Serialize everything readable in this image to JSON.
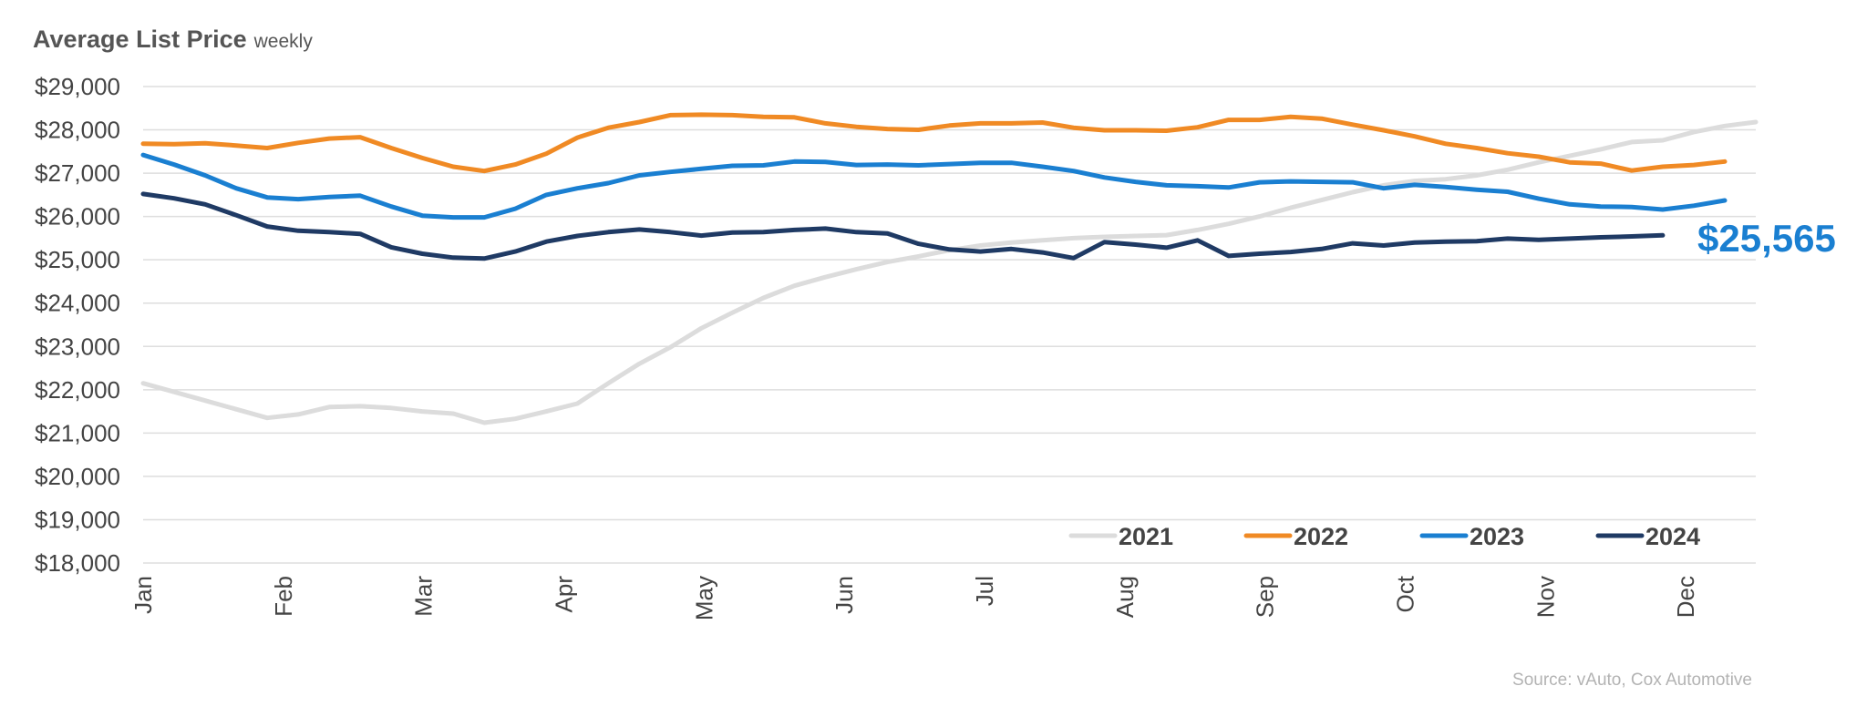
{
  "chart_data": {
    "type": "line",
    "title": "Average List Price",
    "subtitle": "weekly",
    "source": "Source: vAuto, Cox Automotive",
    "callout": {
      "text": "$25,565",
      "series": "2024",
      "color": "#1a7fd1"
    },
    "y_ticks": [
      "$29,000",
      "$28,000",
      "$27,000",
      "$26,000",
      "$25,000",
      "$24,000",
      "$23,000",
      "$22,000",
      "$21,000",
      "$20,000",
      "$19,000",
      "$18,000"
    ],
    "x_ticks": [
      "Jan",
      "Feb",
      "Mar",
      "Apr",
      "May",
      "Jun",
      "Jul",
      "Aug",
      "Sep",
      "Oct",
      "Nov",
      "Dec"
    ],
    "ylim": [
      18000,
      29000
    ],
    "xlim": [
      1,
      53
    ],
    "x_unit": "week",
    "grid": true,
    "legend_position": "bottom-right",
    "series": [
      {
        "name": "2021",
        "color": "#dcdcdc",
        "values": [
          22150,
          21950,
          21750,
          21550,
          21350,
          21430,
          21600,
          21620,
          21580,
          21500,
          21450,
          21240,
          21330,
          21500,
          21680,
          22150,
          22600,
          22980,
          23420,
          23780,
          24120,
          24400,
          24600,
          24780,
          24950,
          25080,
          25220,
          25330,
          25400,
          25450,
          25500,
          25530,
          25550,
          25570,
          25690,
          25830,
          26000,
          26200,
          26380,
          26560,
          26720,
          26820,
          26860,
          26950,
          27080,
          27250,
          27400,
          27550,
          27720,
          27760,
          27950,
          28090,
          28180
        ]
      },
      {
        "name": "2022",
        "color": "#f08a24",
        "values": [
          27680,
          27670,
          27690,
          27640,
          27580,
          27700,
          27800,
          27830,
          27580,
          27350,
          27150,
          27050,
          27200,
          27450,
          27820,
          28050,
          28180,
          28340,
          28350,
          28340,
          28300,
          28290,
          28150,
          28070,
          28020,
          28000,
          28100,
          28150,
          28150,
          28170,
          28050,
          27990,
          27990,
          27980,
          28060,
          28230,
          28230,
          28300,
          28260,
          28120,
          27990,
          27850,
          27680,
          27580,
          27460,
          27380,
          27250,
          27220,
          27060,
          27150,
          27190,
          27270
        ]
      },
      {
        "name": "2023",
        "color": "#1a7fd1",
        "values": [
          27420,
          27200,
          26950,
          26650,
          26440,
          26400,
          26450,
          26480,
          26230,
          26020,
          25980,
          25980,
          26180,
          26500,
          26650,
          26770,
          26950,
          27030,
          27100,
          27170,
          27180,
          27270,
          27260,
          27190,
          27200,
          27180,
          27210,
          27240,
          27240,
          27150,
          27050,
          26900,
          26800,
          26720,
          26700,
          26670,
          26790,
          26810,
          26800,
          26790,
          26650,
          26730,
          26680,
          26620,
          26570,
          26410,
          26280,
          26230,
          26220,
          26160,
          26250,
          26370
        ]
      },
      {
        "name": "2024",
        "color": "#1f3a64",
        "values": [
          26520,
          26420,
          26280,
          26030,
          25770,
          25670,
          25640,
          25600,
          25290,
          25140,
          25050,
          25030,
          25190,
          25420,
          25550,
          25640,
          25700,
          25640,
          25560,
          25630,
          25640,
          25690,
          25720,
          25640,
          25610,
          25370,
          25240,
          25190,
          25250,
          25170,
          25040,
          25410,
          25350,
          25280,
          25450,
          25090,
          25140,
          25180,
          25250,
          25380,
          25330,
          25400,
          25420,
          25430,
          25490,
          25460,
          25490,
          25520,
          25540,
          25565
        ]
      }
    ]
  }
}
